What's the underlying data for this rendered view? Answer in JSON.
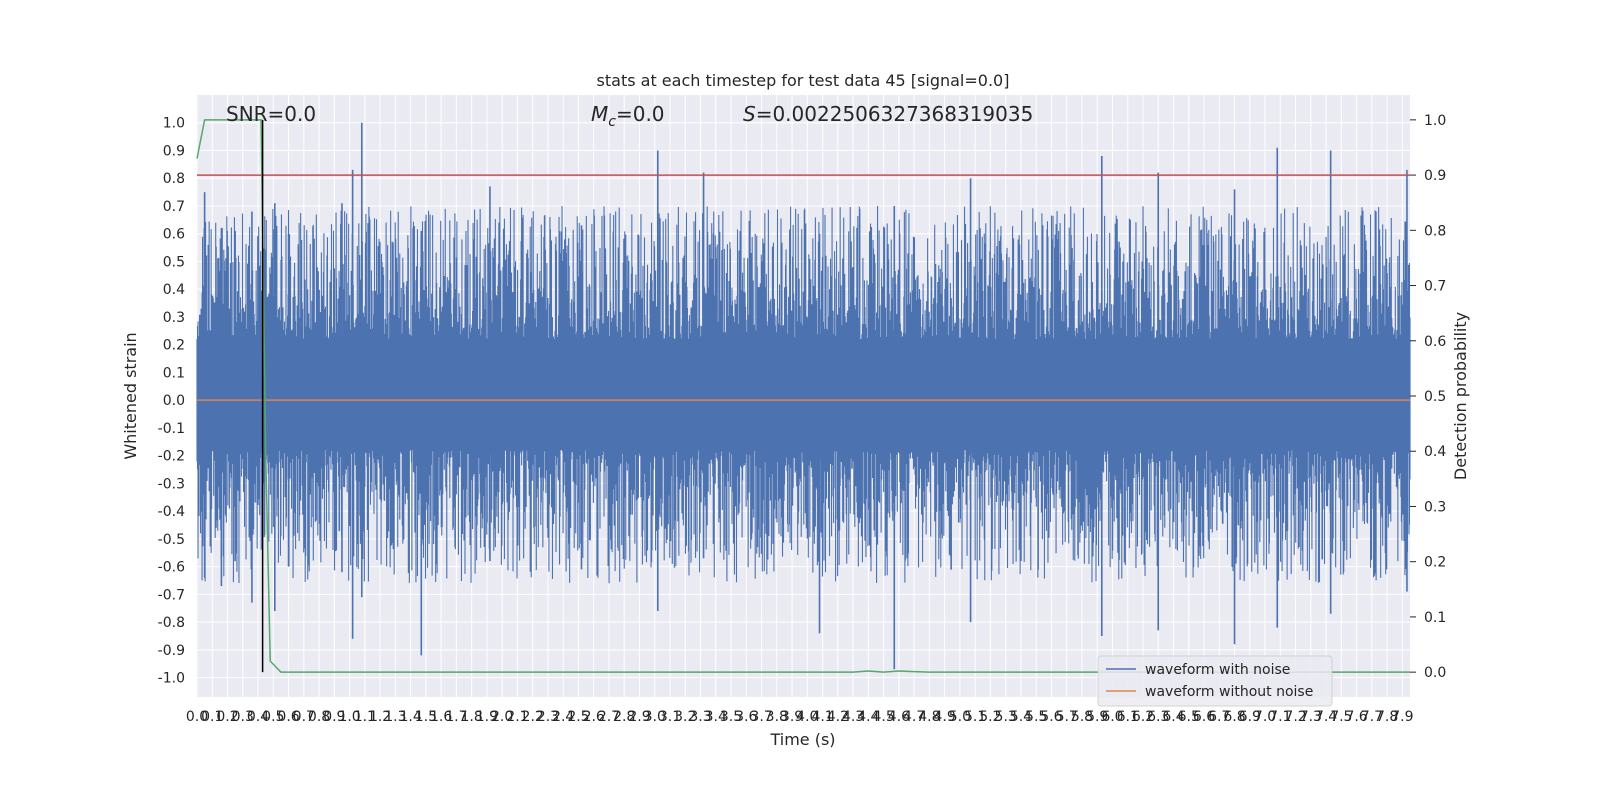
{
  "chart_data": {
    "type": "line",
    "title": "stats at each timestep for test data 45 [signal=0.0]",
    "xlabel": "Time (s)",
    "ylabel_left": "Whitened strain",
    "ylabel_right": "Detection probability",
    "xlim": [
      0.0,
      7.95
    ],
    "ylim_left": [
      -1.07,
      1.1
    ],
    "ylim_right": [
      -0.045,
      1.045
    ],
    "grid": true,
    "x_ticks": [
      "0.0",
      "0.1",
      "0.2",
      "0.3",
      "0.4",
      "0.5",
      "0.6",
      "0.7",
      "0.8",
      "0.9",
      "1.0",
      "1.1",
      "1.2",
      "1.3",
      "1.4",
      "1.5",
      "1.6",
      "1.7",
      "1.8",
      "1.9",
      "2.0",
      "2.1",
      "2.2",
      "2.3",
      "2.4",
      "2.5",
      "2.6",
      "2.7",
      "2.8",
      "2.9",
      "3.0",
      "3.1",
      "3.2",
      "3.3",
      "3.4",
      "3.5",
      "3.6",
      "3.7",
      "3.8",
      "3.9",
      "4.0",
      "4.1",
      "4.2",
      "4.3",
      "4.4",
      "4.5",
      "4.6",
      "4.7",
      "4.8",
      "4.9",
      "5.0",
      "5.1",
      "5.2",
      "5.3",
      "5.4",
      "5.5",
      "5.6",
      "5.7",
      "5.8",
      "5.9",
      "6.0",
      "6.1",
      "6.2",
      "6.3",
      "6.4",
      "6.5",
      "6.6",
      "6.7",
      "6.8",
      "6.9",
      "7.0",
      "7.1",
      "7.2",
      "7.3",
      "7.4",
      "7.5",
      "7.6",
      "7.7",
      "7.8",
      "7.9"
    ],
    "y_ticks_left": [
      "-1.0",
      "-0.9",
      "-0.8",
      "-0.7",
      "-0.6",
      "-0.5",
      "-0.4",
      "-0.3",
      "-0.2",
      "-0.1",
      "0.0",
      "0.1",
      "0.2",
      "0.3",
      "0.4",
      "0.5",
      "0.6",
      "0.7",
      "0.8",
      "0.9",
      "1.0"
    ],
    "y_ticks_right": [
      "0.0",
      "0.1",
      "0.2",
      "0.3",
      "0.4",
      "0.5",
      "0.6",
      "0.7",
      "0.8",
      "0.9",
      "1.0"
    ],
    "annotations": {
      "snr": "SNR=0.0",
      "mc": "=0.0",
      "s": "=0.0022506327368319035"
    },
    "threshold": 0.9,
    "vline_x": 0.43,
    "series": [
      {
        "name": "waveform with noise",
        "color": "#4c72b0",
        "axis": "left",
        "style": "dense-noise",
        "spikes": [
          [
            0.05,
            0.75,
            -0.64
          ],
          [
            0.16,
            0.62,
            -0.67
          ],
          [
            0.25,
            0.61,
            -0.58
          ],
          [
            0.36,
            0.68,
            -0.73
          ],
          [
            0.51,
            0.71,
            -0.76
          ],
          [
            0.6,
            0.6,
            -0.6
          ],
          [
            0.95,
            0.71,
            -0.62
          ],
          [
            1.02,
            0.83,
            -0.86
          ],
          [
            1.08,
            1.0,
            -0.71
          ],
          [
            1.47,
            0.61,
            -0.92
          ],
          [
            1.92,
            0.77,
            -0.58
          ],
          [
            2.52,
            0.63,
            -0.61
          ],
          [
            3.02,
            0.9,
            -0.76
          ],
          [
            3.32,
            0.82,
            -0.57
          ],
          [
            4.08,
            0.6,
            -0.84
          ],
          [
            4.57,
            0.7,
            -0.97
          ],
          [
            5.07,
            0.8,
            -0.8
          ],
          [
            5.93,
            0.88,
            -0.85
          ],
          [
            6.3,
            0.82,
            -0.83
          ],
          [
            6.8,
            0.76,
            -0.88
          ],
          [
            7.08,
            0.91,
            -0.82
          ],
          [
            7.43,
            0.9,
            -0.77
          ],
          [
            7.93,
            0.83,
            -0.69
          ]
        ]
      },
      {
        "name": "waveform without noise",
        "color": "#dd8452",
        "axis": "left",
        "y": 0.0
      },
      {
        "name": "",
        "color": "#55a868",
        "axis": "right",
        "x": [
          0.0,
          0.05,
          0.1,
          0.2,
          0.3,
          0.42,
          0.45,
          0.48,
          0.55,
          0.6,
          1.0,
          2.0,
          3.0,
          4.0,
          4.3,
          4.4,
          4.5,
          4.6,
          4.7,
          4.8,
          5.0,
          6.0,
          7.0,
          7.95
        ],
        "y": [
          0.93,
          1.0,
          1.0,
          1.0,
          1.0,
          1.0,
          0.4,
          0.02,
          0.0,
          0.0,
          0.0,
          0.0,
          0.0,
          0.0,
          0.0,
          0.002,
          0.0,
          0.002,
          0.001,
          0.0,
          0.0,
          0.0,
          0.0,
          0.0
        ]
      }
    ],
    "legend": {
      "position": "lower-right",
      "entries": [
        {
          "label": "waveform with noise",
          "color": "#4c72b0"
        },
        {
          "label": "waveform without noise",
          "color": "#dd8452"
        }
      ]
    },
    "colors": {
      "background": "#eaeaf2",
      "grid": "#ffffff",
      "threshold": "#c44e52",
      "vline": "#000000"
    }
  }
}
